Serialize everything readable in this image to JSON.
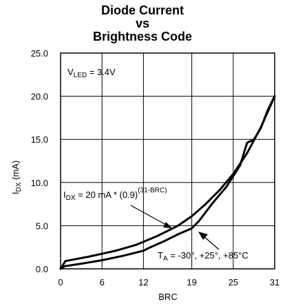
{
  "chart_data": {
    "type": "line",
    "title_lines": [
      "Diode Current",
      "vs",
      "Brightness Code"
    ],
    "xlabel": "BRC",
    "ylabel_main": "I",
    "ylabel_sub": "DX",
    "ylabel_unit": " (mA)",
    "xlim": [
      0,
      31
    ],
    "ylim": [
      0,
      25
    ],
    "x_ticks": [
      "0",
      "6",
      "12",
      "19",
      "25",
      "31"
    ],
    "x_tick_values": [
      0,
      6,
      12,
      19,
      25,
      31
    ],
    "y_ticks": [
      "0.0",
      "5.0",
      "10.0",
      "15.0",
      "20.0",
      "25.0"
    ],
    "y_tick_values": [
      0,
      5,
      10,
      15,
      20,
      25
    ],
    "grid": true,
    "series": [
      {
        "x": [
          0,
          0.7,
          4,
          8,
          11,
          14,
          17,
          19,
          21,
          23,
          25,
          27,
          29,
          31
        ],
        "y": [
          0.0,
          0.9,
          1.4,
          2.1,
          2.8,
          3.8,
          5.0,
          6.1,
          7.5,
          9.1,
          11.0,
          13.4,
          16.4,
          20.0
        ]
      },
      {
        "x": [
          0,
          0.6,
          3,
          6,
          9,
          12,
          13,
          15,
          17,
          19,
          20,
          22,
          24,
          26,
          27,
          28,
          29,
          30,
          31
        ],
        "y": [
          0.0,
          0.3,
          0.6,
          1.0,
          1.5,
          2.1,
          2.5,
          3.2,
          4.0,
          4.7,
          5.5,
          7.6,
          9.5,
          12.0,
          14.6,
          15.0,
          16.3,
          18.4,
          20.0
        ]
      }
    ],
    "annotations": {
      "vled_main": "V",
      "vled_sub": "LED",
      "vled_rest": " = 3.4V",
      "formula_main": "I",
      "formula_sub": "DX",
      "formula_rest": " = 20 mA * (0.9)",
      "formula_sup": "(31-BRC)",
      "temp_main": "T",
      "temp_sub": "A",
      "temp_rest": " = -30°, +25°, +85°C"
    }
  }
}
